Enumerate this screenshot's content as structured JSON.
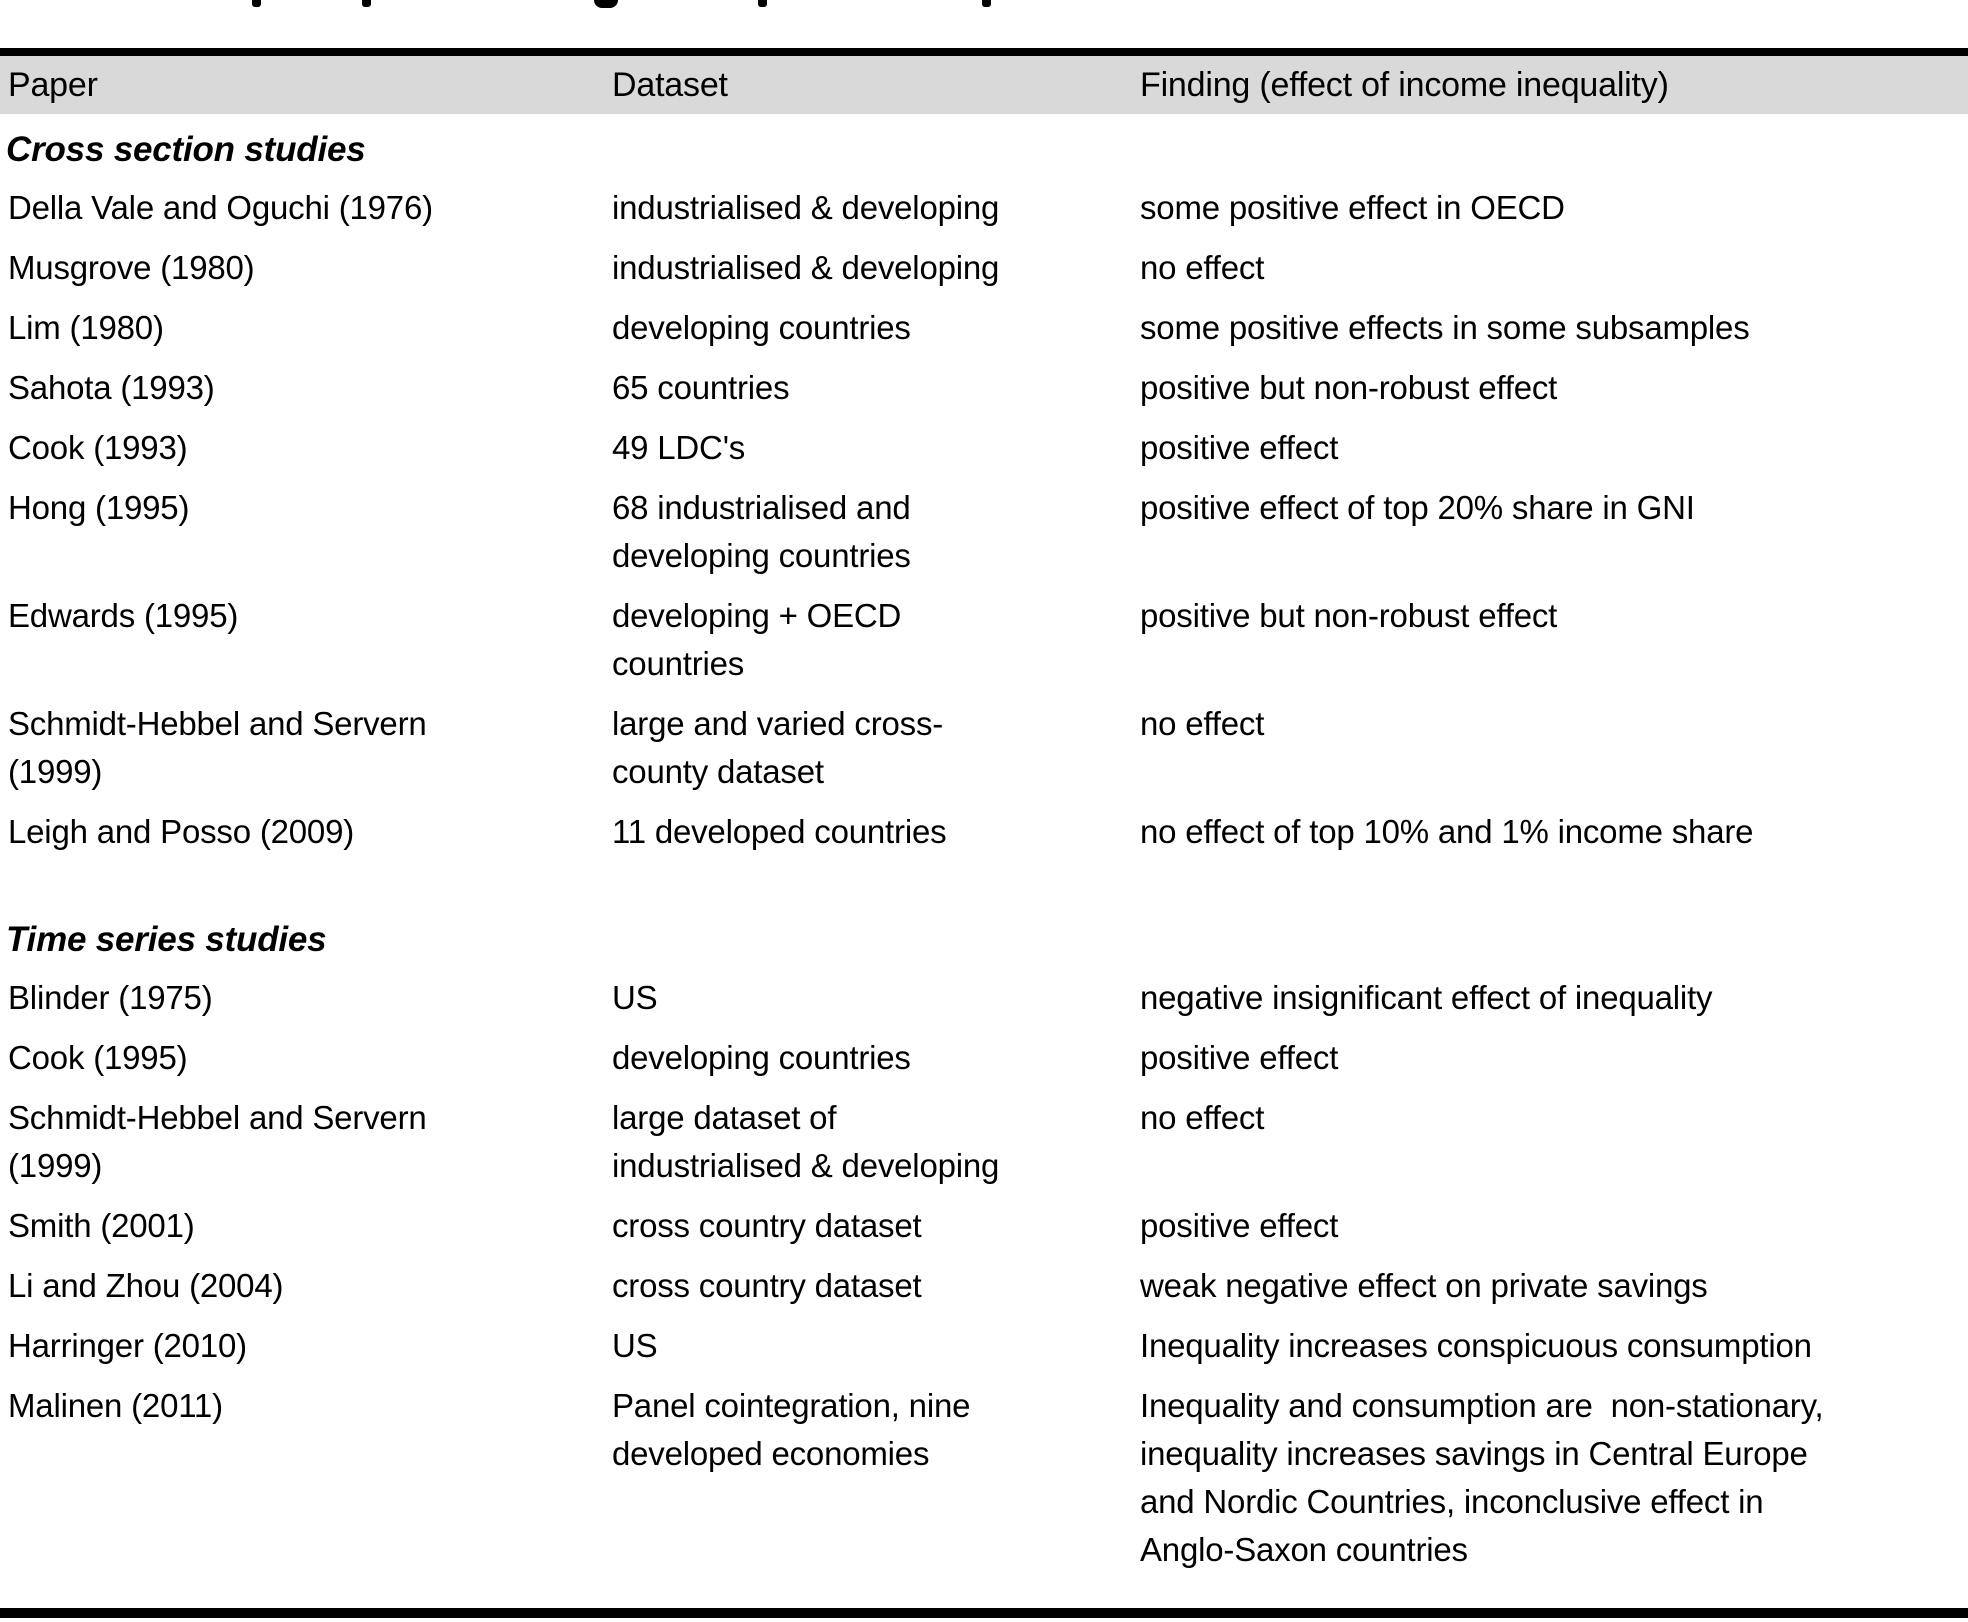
{
  "page": {
    "background": "#ffffff",
    "text_color": "#000000",
    "border_color": "#000000"
  },
  "clipped_caption": {
    "description": "bottom edge of a cropped bold caption line above the table; only letter descenders are visible"
  },
  "table": {
    "header": {
      "bg_color": "#d9d9d9",
      "columns": [
        "Paper",
        "Dataset",
        "Finding (effect of income inequality)"
      ]
    },
    "sections": [
      {
        "label": "Cross section studies",
        "rows": [
          {
            "paper": "Della Vale and Oguchi (1976)",
            "dataset": "industrialised & developing",
            "finding": "some positive effect in OECD"
          },
          {
            "paper": "Musgrove (1980)",
            "dataset": "industrialised & developing",
            "finding": "no effect"
          },
          {
            "paper": "Lim (1980)",
            "dataset": "developing countries",
            "finding": "some positive effects in some subsamples"
          },
          {
            "paper": "Sahota (1993)",
            "dataset": "65 countries",
            "finding": "positive but non-robust effect"
          },
          {
            "paper": "Cook (1993)",
            "dataset": "49 LDC's",
            "finding": "positive effect"
          },
          {
            "paper": "Hong (1995)",
            "dataset": "68 industrialised and\ndeveloping countries",
            "finding": "positive effect of top 20% share in GNI"
          },
          {
            "paper": "Edwards (1995)",
            "dataset": "developing + OECD\ncountries",
            "finding": "positive but non-robust effect"
          },
          {
            "paper": "Schmidt-Hebbel and Servern\n(1999)",
            "dataset": "large and varied cross-\ncounty dataset",
            "finding": "no effect"
          },
          {
            "paper": "Leigh and Posso (2009)",
            "dataset": "11 developed countries",
            "finding": "no effect of top 10% and 1% income share"
          }
        ]
      },
      {
        "label": "Time series studies",
        "rows": [
          {
            "paper": "Blinder (1975)",
            "dataset": "US",
            "finding": "negative insignificant effect of inequality"
          },
          {
            "paper": "Cook (1995)",
            "dataset": "developing countries",
            "finding": "positive effect"
          },
          {
            "paper": "Schmidt-Hebbel and Servern\n(1999)",
            "dataset": "large dataset of\nindustrialised & developing",
            "finding": "no effect"
          },
          {
            "paper": "Smith (2001)",
            "dataset": "cross country dataset",
            "finding": "positive effect"
          },
          {
            "paper": "Li and Zhou (2004)",
            "dataset": "cross country dataset",
            "finding": "weak negative effect on private savings"
          },
          {
            "paper": "Harringer (2010)",
            "dataset": "US",
            "finding": "Inequality increases conspicuous consumption"
          },
          {
            "paper": "Malinen (2011)",
            "dataset": "Panel cointegration, nine\ndeveloped economies",
            "finding": "Inequality and consumption are  non-stationary,\ninequality increases savings in Central Europe\nand Nordic Countries, inconclusive effect in\nAnglo-Saxon countries"
          }
        ]
      }
    ]
  }
}
